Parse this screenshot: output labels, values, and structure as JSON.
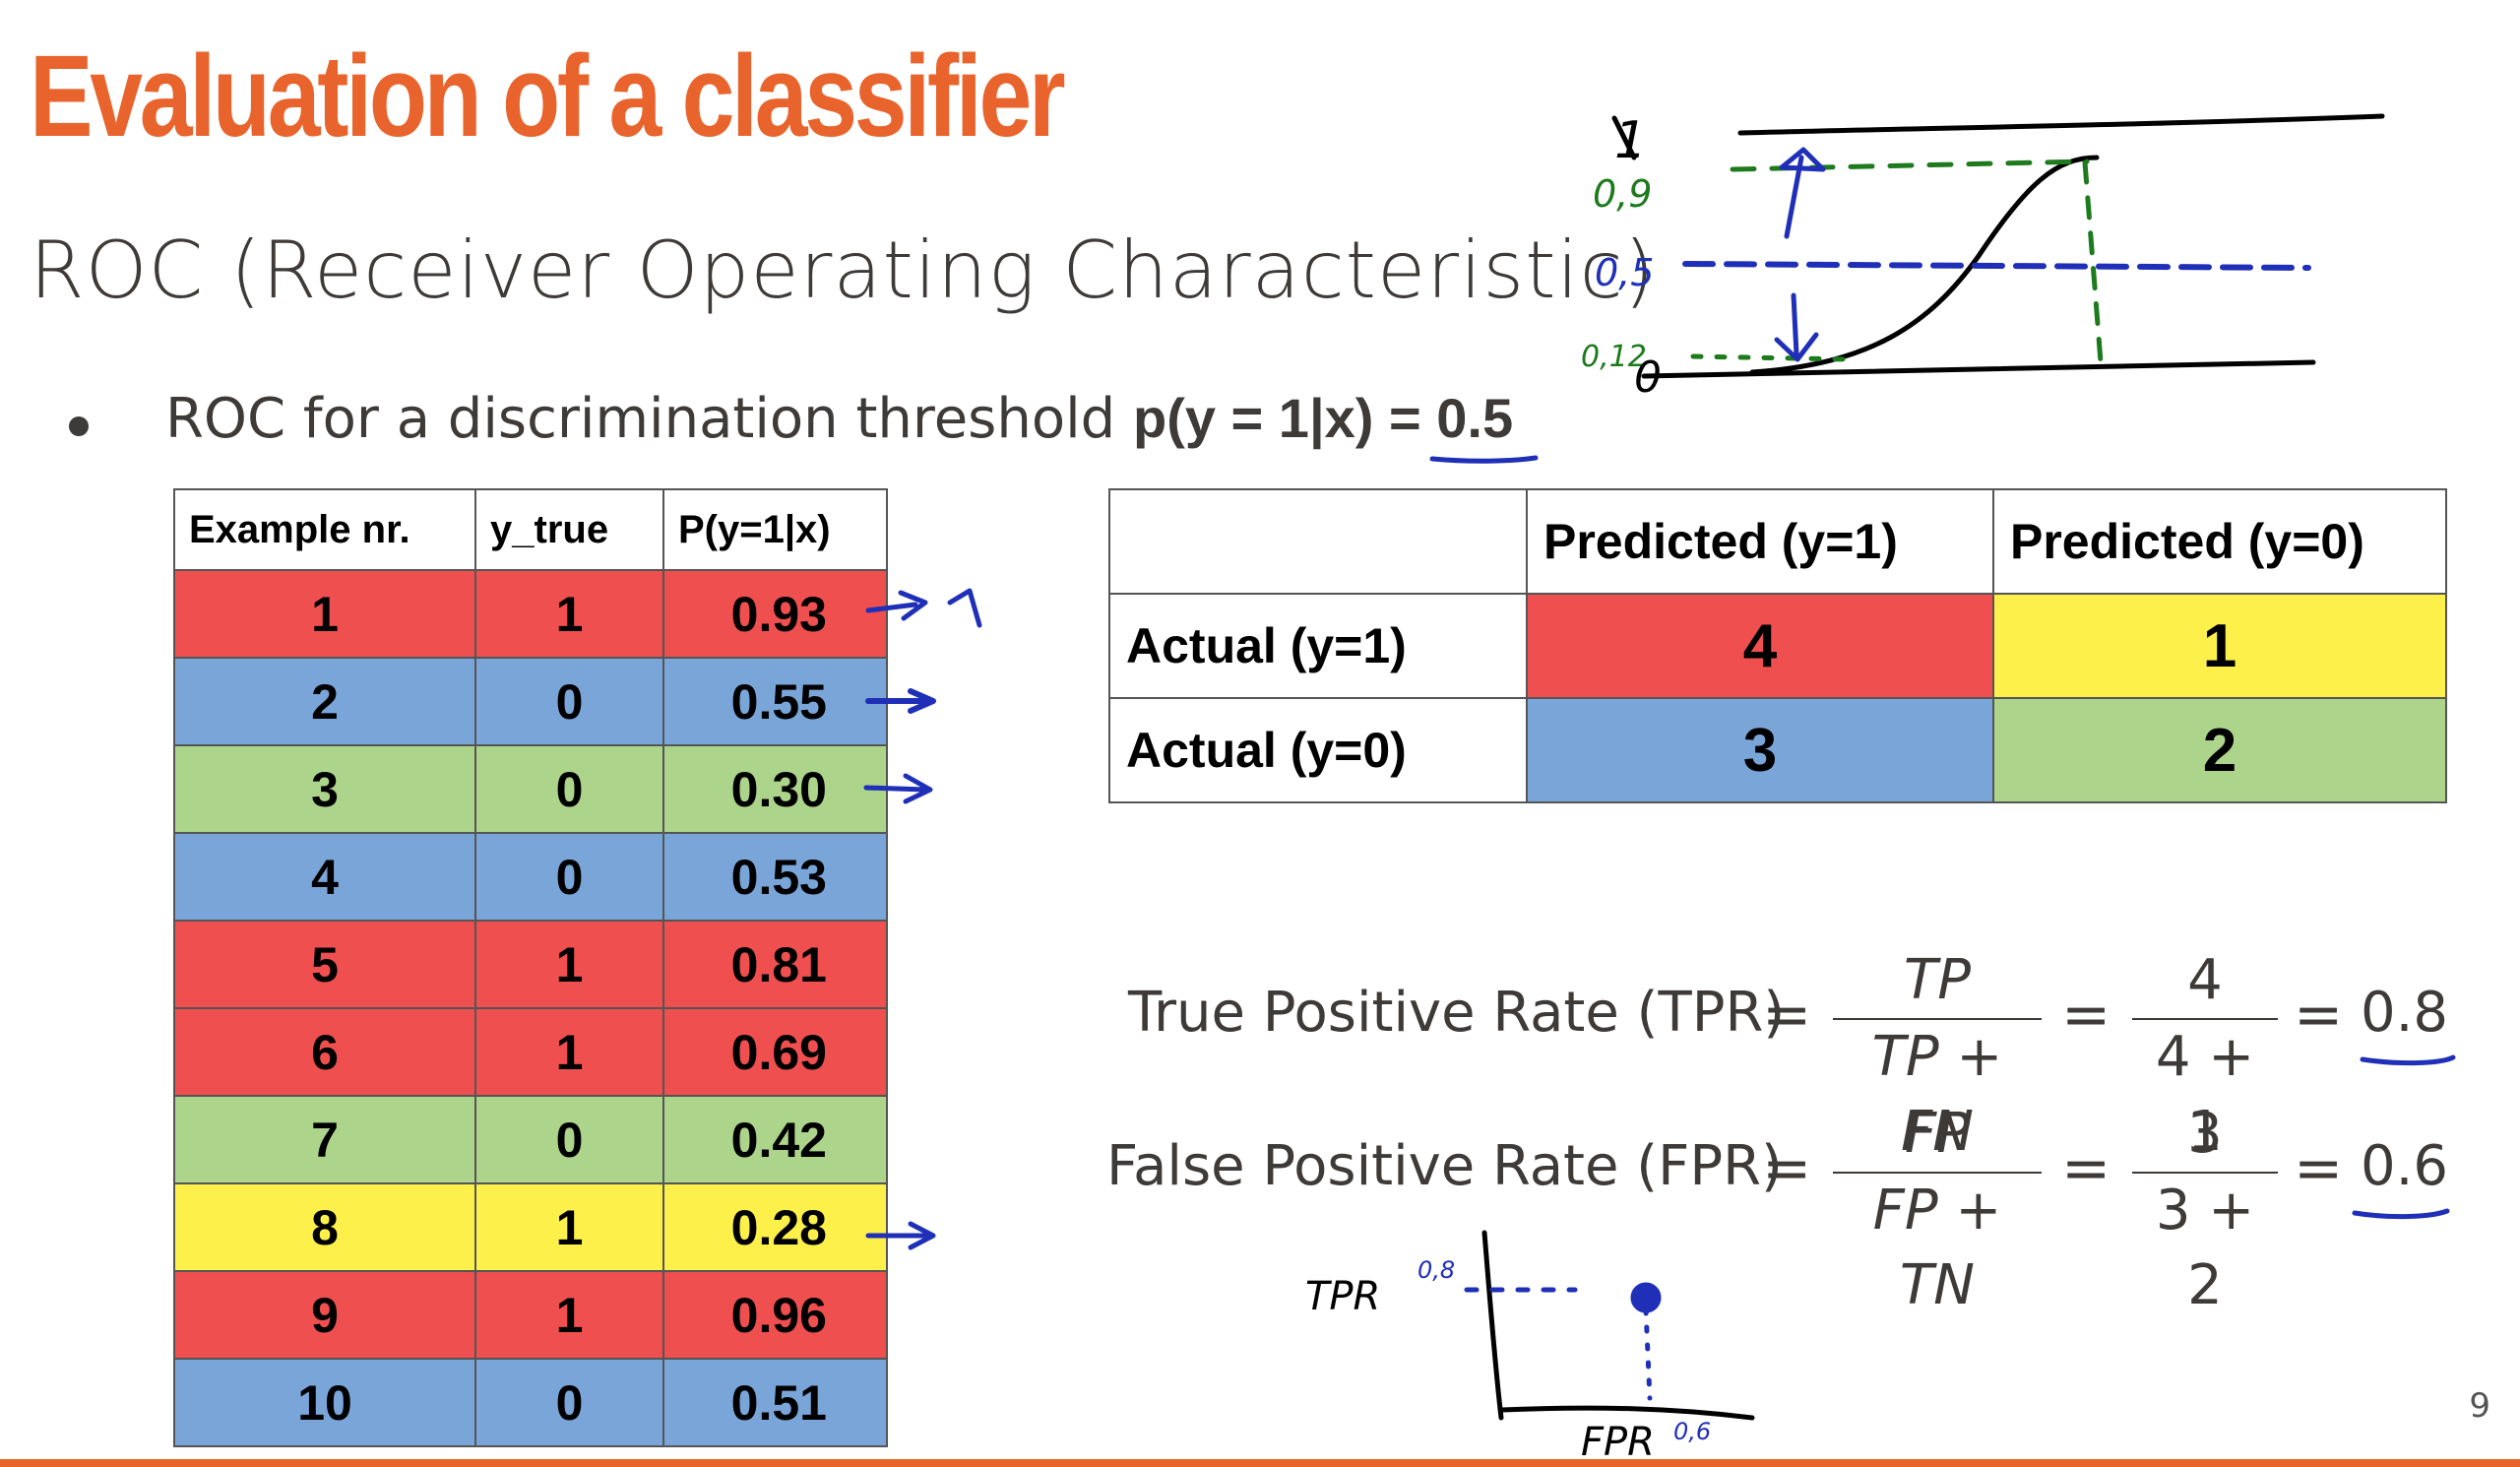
{
  "title": "Evaluation of a classifier",
  "subtitle": "ROC (Receiver Operating Characteristic)",
  "bullet": {
    "text": "ROC for a discrimination threshold ",
    "bold": "p(y = 1|x) = ",
    "threshold": "0.5"
  },
  "examples_table": {
    "headers": [
      "Example nr.",
      "y_true",
      "P(y=1|x)"
    ],
    "rows": [
      {
        "nr": "1",
        "y_true": "1",
        "p": "0.93",
        "color": "#ef4f4f"
      },
      {
        "nr": "2",
        "y_true": "0",
        "p": "0.55",
        "color": "#7aa5d9"
      },
      {
        "nr": "3",
        "y_true": "0",
        "p": "0.30",
        "color": "#acd48a"
      },
      {
        "nr": "4",
        "y_true": "0",
        "p": "0.53",
        "color": "#7aa5d9"
      },
      {
        "nr": "5",
        "y_true": "1",
        "p": "0.81",
        "color": "#ef4f4f"
      },
      {
        "nr": "6",
        "y_true": "1",
        "p": "0.69",
        "color": "#ef4f4f"
      },
      {
        "nr": "7",
        "y_true": "0",
        "p": "0.42",
        "color": "#acd48a"
      },
      {
        "nr": "8",
        "y_true": "1",
        "p": "0.28",
        "color": "#fdf04b"
      },
      {
        "nr": "9",
        "y_true": "1",
        "p": "0.96",
        "color": "#ef4f4f"
      },
      {
        "nr": "10",
        "y_true": "0",
        "p": "0.51",
        "color": "#7aa5d9"
      }
    ]
  },
  "confusion_matrix": {
    "col_headers": [
      "Predicted (y=1)",
      "Predicted (y=0)"
    ],
    "rows": [
      {
        "label": "Actual (y=1)",
        "values": [
          "4",
          "1"
        ],
        "colors": [
          "#ef4f4f",
          "#fdf04b"
        ]
      },
      {
        "label": "Actual (y=0)",
        "values": [
          "3",
          "2"
        ],
        "colors": [
          "#7aa5d9",
          "#acd48a"
        ]
      }
    ]
  },
  "formulas": {
    "tpr": {
      "label": "True Positive Rate (TPR)",
      "num1": "TP",
      "den1": "TP + FN",
      "num2": "4",
      "den2": "4 + 1",
      "result": "0.8"
    },
    "fpr": {
      "label": "False Positive Rate (FPR)",
      "num1": "FP",
      "den1": "FP + TN",
      "num2": "3",
      "den2": "3 + 2",
      "result": "0.6"
    },
    "eq": "="
  },
  "annotations": {
    "sigmoid_labels": [
      "1",
      "0,9",
      "0,5",
      "0,12",
      "0"
    ],
    "row1_note": "1",
    "roc_axis_y": "TPR",
    "roc_axis_x": "FPR",
    "roc_tick_y": "0,8",
    "roc_tick_x": "0,6"
  },
  "colors": {
    "accent": "#e8642c",
    "ink_blue": "#1f2fb8",
    "ink_green": "#1d7a1d"
  },
  "page_number": "9"
}
